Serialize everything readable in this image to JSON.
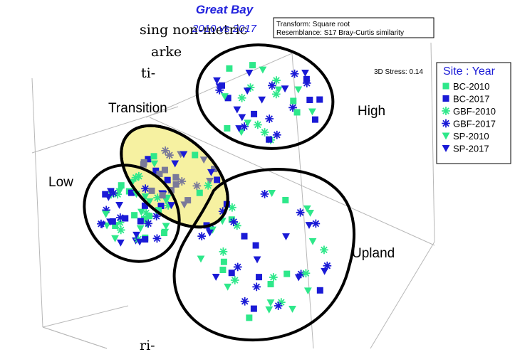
{
  "title": "Great Bay",
  "subtitle": "2010 vs 2017",
  "notes": [
    "Transform: Square root",
    "Resemblance: S17 Bray-Curtis similarity"
  ],
  "stress": "3D Stress: 0.14",
  "legend": {
    "title": "Site : Year",
    "items": [
      {
        "label": "BC-2010",
        "marker": "square",
        "color": "#2ee88a"
      },
      {
        "label": "BC-2017",
        "marker": "square",
        "color": "#1a1ad6"
      },
      {
        "label": "GBF-2010",
        "marker": "asterisk",
        "color": "#2ee88a"
      },
      {
        "label": "GBF-2017",
        "marker": "asterisk",
        "color": "#1a1ad6"
      },
      {
        "label": "SP-2010",
        "marker": "triangle",
        "color": "#2ee88a"
      },
      {
        "label": "SP-2017",
        "marker": "triangle",
        "color": "#1a1ad6"
      }
    ]
  },
  "regions": [
    "Transition",
    "High",
    "Low",
    "Upland"
  ],
  "fragments": [
    "sing non-metric",
    "arke",
    "ti-",
    "ri-"
  ]
}
